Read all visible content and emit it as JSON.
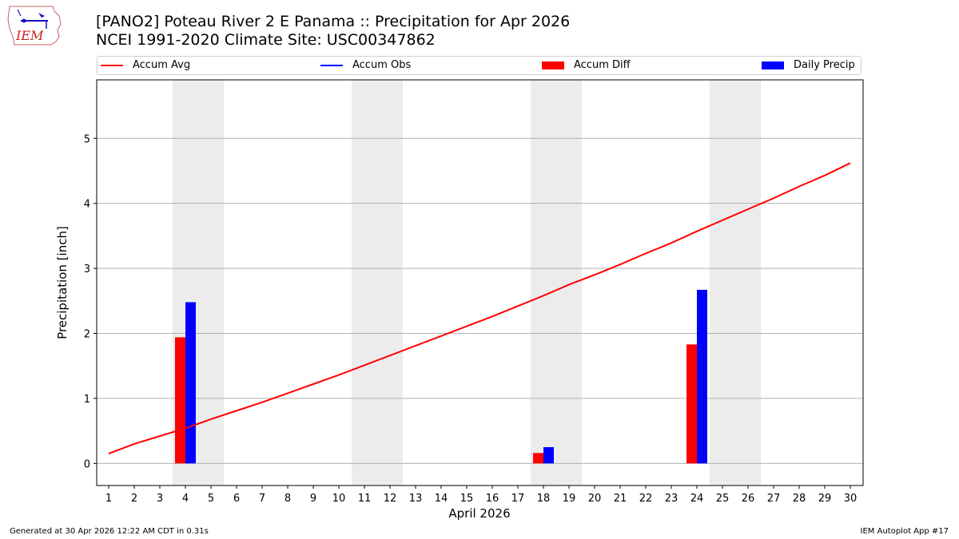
{
  "header": {
    "logo_text": "IEM",
    "title_line1": "[PANO2] Poteau River 2 E Panama :: Precipitation for Apr 2026",
    "title_line2": "NCEI 1991-2020 Climate Site: USC00347862"
  },
  "legend": {
    "items": [
      {
        "label": "Accum Avg",
        "type": "line",
        "color": "#ff0000"
      },
      {
        "label": "Accum Obs",
        "type": "line",
        "color": "#0000ff"
      },
      {
        "label": "Accum Diff",
        "type": "patch",
        "color": "#ff0000"
      },
      {
        "label": "Daily Precip",
        "type": "patch",
        "color": "#0000ff"
      }
    ]
  },
  "footer": {
    "generated": "Generated at 30 Apr 2026 12:22 AM CDT in 0.31s",
    "app": "IEM Autoplot App #17"
  },
  "chart_data": {
    "type": "bar",
    "title": "[PANO2] Poteau River 2 E Panama :: Precipitation for Apr 2026",
    "subtitle": "NCEI 1991-2020 Climate Site: USC00347862",
    "xlabel": "April 2026",
    "ylabel": "Precipitation [inch]",
    "ylim": [
      -0.34,
      5.9
    ],
    "yticks": [
      0,
      1,
      2,
      3,
      4,
      5
    ],
    "grid": true,
    "legend_position": "top",
    "x": [
      1,
      2,
      3,
      4,
      5,
      6,
      7,
      8,
      9,
      10,
      11,
      12,
      13,
      14,
      15,
      16,
      17,
      18,
      19,
      20,
      21,
      22,
      23,
      24,
      25,
      26,
      27,
      28,
      29,
      30
    ],
    "weekend_bands": [
      [
        3.5,
        5.5
      ],
      [
        10.5,
        12.5
      ],
      [
        17.5,
        19.5
      ],
      [
        24.5,
        26.5
      ]
    ],
    "series": [
      {
        "name": "Accum Avg",
        "kind": "line",
        "color": "#ff0000",
        "values": [
          0.15,
          0.3,
          0.42,
          0.54,
          0.68,
          0.81,
          0.94,
          1.08,
          1.22,
          1.36,
          1.51,
          1.66,
          1.81,
          1.96,
          2.11,
          2.26,
          2.42,
          2.58,
          2.75,
          2.9,
          3.06,
          3.23,
          3.39,
          3.57,
          3.74,
          3.91,
          4.08,
          4.26,
          4.43,
          4.62
        ]
      },
      {
        "name": "Accum Obs",
        "kind": "line",
        "color": "#0000ff",
        "values": []
      },
      {
        "name": "Accum Diff",
        "kind": "bar",
        "color": "#ff0000",
        "points": [
          {
            "x": 4,
            "value": 1.94
          },
          {
            "x": 18,
            "value": 0.16
          },
          {
            "x": 24,
            "value": 1.83
          }
        ]
      },
      {
        "name": "Daily Precip",
        "kind": "bar",
        "color": "#0000ff",
        "points": [
          {
            "x": 4,
            "value": 2.48
          },
          {
            "x": 18,
            "value": 0.25
          },
          {
            "x": 24,
            "value": 2.67
          }
        ]
      }
    ]
  }
}
